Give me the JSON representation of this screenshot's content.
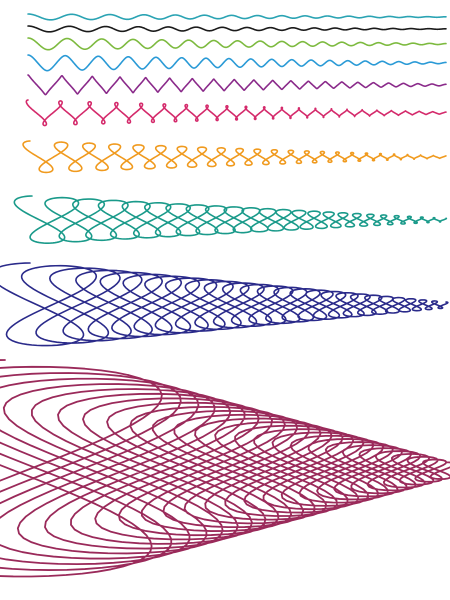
{
  "figure": {
    "background": "#ffffff",
    "curves": [
      {
        "name": "curve-1",
        "color": "#2aa3b3",
        "loopiness": 0.0,
        "amplitude": 0.02
      },
      {
        "name": "curve-2",
        "color": "#1a1a1a",
        "loopiness": 0.0,
        "amplitude": 0.03
      },
      {
        "name": "curve-3",
        "color": "#7dba3f",
        "loopiness": 0.0,
        "amplitude": 0.05
      },
      {
        "name": "curve-4",
        "color": "#2a9ad6",
        "loopiness": 0.05,
        "amplitude": 0.07
      },
      {
        "name": "curve-5",
        "color": "#8a2a8a",
        "loopiness": 0.2,
        "amplitude": 0.09
      },
      {
        "name": "curve-6",
        "color": "#d42a6b",
        "loopiness": 0.45,
        "amplitude": 0.12
      },
      {
        "name": "curve-7",
        "color": "#f09a1e",
        "loopiness": 0.75,
        "amplitude": 0.15
      },
      {
        "name": "curve-8",
        "color": "#1a9a8a",
        "loopiness": 1.0,
        "amplitude": 0.2
      },
      {
        "name": "curve-9",
        "color": "#2a2a8a",
        "loopiness": 1.15,
        "amplitude": 0.3
      },
      {
        "name": "curve-10",
        "color": "#9a2a5a",
        "loopiness": 1.4,
        "amplitude": 1.0
      }
    ]
  }
}
